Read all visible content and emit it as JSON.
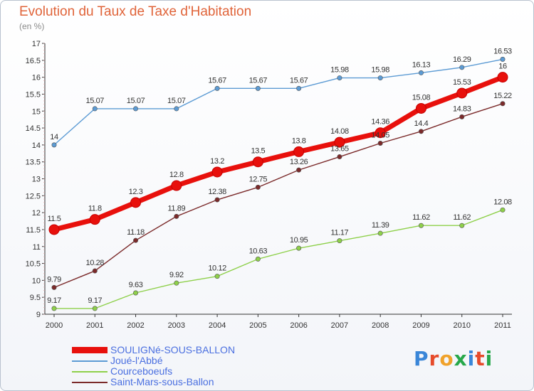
{
  "title": "Evolution du Taux de Taxe d'Habitation",
  "subtitle": "(en %)",
  "logo": "Proxiti",
  "colors": {
    "p": "#3a86d8",
    "r": "#e64b2b",
    "o": "#f0a22b",
    "x": "#27a84a",
    "i": "#3a86d8",
    "t": "#e64b2b",
    "i2": "#27a84a"
  },
  "chart_data": {
    "type": "line",
    "x": [
      "2000",
      "2001",
      "2002",
      "2003",
      "2004",
      "2005",
      "2006",
      "2007",
      "2008",
      "2009",
      "2010",
      "2011"
    ],
    "ylim": [
      9,
      17
    ],
    "yticks": [
      "9",
      "9.5",
      "10",
      "10.5",
      "11",
      "11.5",
      "12",
      "12.5",
      "13",
      "13.5",
      "14",
      "14.5",
      "15",
      "15.5",
      "16",
      "16.5",
      "17"
    ],
    "grid": false,
    "legend_position": "bottom-left",
    "series": [
      {
        "name": "SOULIGNé-SOUS-BALLON",
        "color": "#e8100c",
        "values": [
          11.5,
          11.8,
          12.3,
          12.8,
          13.2,
          13.5,
          13.8,
          14.08,
          14.36,
          15.08,
          15.53,
          16
        ],
        "labels": [
          "11.5",
          "11.8",
          "12.3",
          "12.8",
          "13.2",
          "13.5",
          "13.8",
          "14.08",
          "14.36",
          "15.08",
          "15.53",
          "16"
        ]
      },
      {
        "name": "Joué-l'Abbé",
        "color": "#5c9bd4",
        "values": [
          14,
          15.07,
          15.07,
          15.07,
          15.67,
          15.67,
          15.67,
          15.98,
          15.98,
          16.13,
          16.29,
          16.53
        ],
        "labels": [
          "14",
          "15.07",
          "15.07",
          "15.07",
          "15.67",
          "15.67",
          "15.67",
          "15.98",
          "15.98",
          "16.13",
          "16.29",
          "16.53"
        ]
      },
      {
        "name": "Courceboeufs",
        "color": "#8ed04a",
        "values": [
          9.17,
          9.17,
          9.63,
          9.92,
          10.12,
          10.63,
          10.95,
          11.17,
          11.39,
          11.62,
          11.62,
          12.08
        ],
        "labels": [
          "9.17",
          "9.17",
          "9.63",
          "9.92",
          "10.12",
          "10.63",
          "10.95",
          "11.17",
          "11.39",
          "11.62",
          "11.62",
          "12.08"
        ]
      },
      {
        "name": "Saint-Mars-sous-Ballon",
        "color": "#7b2a2a",
        "values": [
          9.79,
          10.28,
          11.18,
          11.89,
          12.38,
          12.75,
          13.26,
          13.65,
          14.05,
          14.4,
          14.83,
          15.22
        ],
        "labels": [
          "9.79",
          "10.28",
          "11.18",
          "11.89",
          "12.38",
          "12.75",
          "13.26",
          "13.65",
          "14.05",
          "14.4",
          "14.83",
          "15.22"
        ]
      }
    ]
  }
}
